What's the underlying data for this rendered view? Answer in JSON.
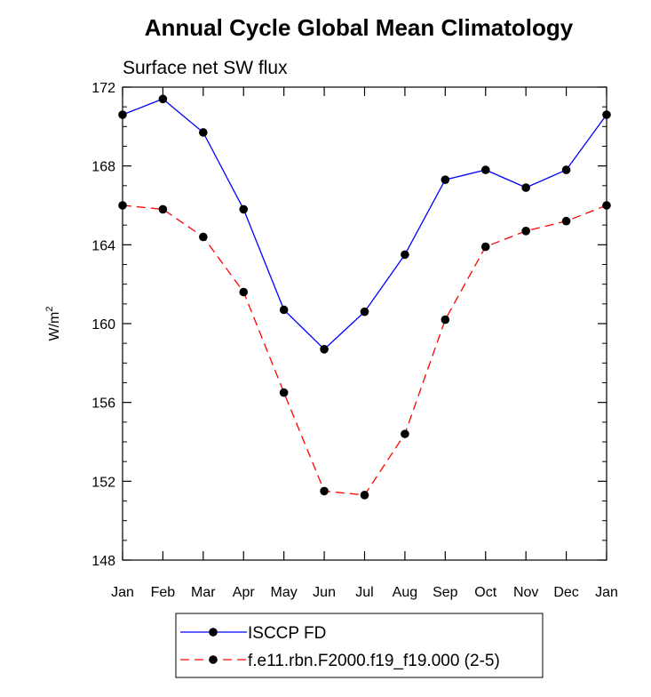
{
  "chart_data": {
    "type": "line",
    "title": "Annual Cycle Global Mean Climatology",
    "subtitle": "Surface net SW flux",
    "xlabel": "",
    "ylabel": "W/m",
    "ylabel_superscript": "2",
    "ylim": [
      148,
      172
    ],
    "yticks": [
      148,
      152,
      156,
      160,
      164,
      168,
      172
    ],
    "ytick_labels": [
      "148",
      "152",
      "156",
      "160",
      "164",
      "168",
      "172"
    ],
    "categories": [
      "Jan",
      "Feb",
      "Mar",
      "Apr",
      "May",
      "Jun",
      "Jul",
      "Aug",
      "Sep",
      "Oct",
      "Nov",
      "Dec",
      "Jan"
    ],
    "grid": false,
    "legend_position": "bottom-center",
    "series": [
      {
        "name": "ISCCP FD",
        "color": "#0000ff",
        "dash": "solid",
        "values": [
          170.6,
          171.4,
          169.7,
          165.8,
          160.7,
          158.7,
          160.6,
          163.5,
          167.3,
          167.8,
          166.9,
          167.8,
          170.6
        ]
      },
      {
        "name": "f.e11.rbn.F2000.f19_f19.000 (2-5)",
        "color": "#ff0000",
        "dash": "dashed",
        "values": [
          166.0,
          165.8,
          164.4,
          161.6,
          156.5,
          151.5,
          151.3,
          154.4,
          160.2,
          163.9,
          164.7,
          165.2,
          166.0
        ]
      }
    ]
  }
}
